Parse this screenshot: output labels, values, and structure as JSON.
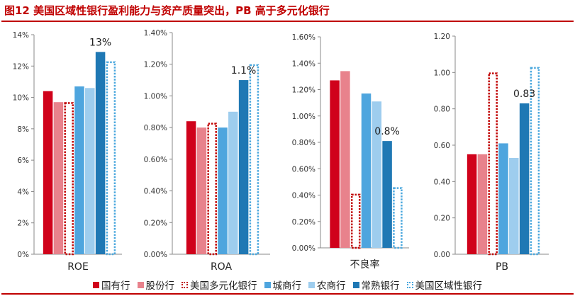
{
  "title": "图12 美国区域性银行盈利能力与资产质量突出，PB 高于多元化银行",
  "colors": {
    "国有行": "#D0021B",
    "股份行": "#E8828C",
    "美国多元化银行": "#C00000",
    "城商行": "#4EA5DE",
    "农商行": "#9ECDEE",
    "常熟银行": "#1F78B4",
    "美国区域性银行": "#4BA8DE"
  },
  "legend": [
    {
      "label": "国有行",
      "style": "solid",
      "color_key": "国有行"
    },
    {
      "label": "股份行",
      "style": "solid",
      "color_key": "股份行"
    },
    {
      "label": "美国多元化银行",
      "style": "dotted",
      "color_key": "美国多元化银行"
    },
    {
      "label": "城商行",
      "style": "solid",
      "color_key": "城商行"
    },
    {
      "label": "农商行",
      "style": "solid",
      "color_key": "农商行"
    },
    {
      "label": "常熟银行",
      "style": "solid",
      "color_key": "常熟银行"
    },
    {
      "label": "美国区域性银行",
      "style": "dotted",
      "color_key": "美国区域性银行"
    }
  ],
  "chart_data": [
    {
      "type": "bar",
      "xlabel": "ROE",
      "ylim": [
        0,
        14
      ],
      "yticks": [
        0,
        2,
        4,
        6,
        8,
        10,
        12,
        14
      ],
      "ytick_labels": [
        "0%",
        "2%",
        "4%",
        "6%",
        "8%",
        "10%",
        "12%",
        "14%"
      ],
      "categories": [
        "国有行",
        "股份行",
        "美国多元化银行",
        "城商行",
        "农商行",
        "常熟银行",
        "美国区域性银行"
      ],
      "values": [
        10.4,
        9.7,
        9.7,
        10.7,
        10.6,
        12.9,
        12.3
      ],
      "annotation": {
        "text": "13%",
        "bar_index": 5
      }
    },
    {
      "type": "bar",
      "xlabel": "ROA",
      "ylim": [
        0,
        1.4
      ],
      "yticks": [
        0,
        0.2,
        0.4,
        0.6,
        0.8,
        1.0,
        1.2,
        1.4
      ],
      "ytick_labels": [
        "0.00%",
        "0.20%",
        "0.40%",
        "0.60%",
        "0.80%",
        "1.00%",
        "1.20%",
        "1.40%"
      ],
      "categories": [
        "国有行",
        "股份行",
        "美国多元化银行",
        "城商行",
        "农商行",
        "常熟银行",
        "美国区域性银行"
      ],
      "values": [
        0.84,
        0.8,
        0.83,
        0.8,
        0.9,
        1.1,
        1.2
      ],
      "annotation": {
        "text": "1.1%",
        "bar_index": 5
      }
    },
    {
      "type": "bar",
      "xlabel": "不良率",
      "ylim": [
        0,
        1.6
      ],
      "yticks": [
        0,
        0.2,
        0.4,
        0.6,
        0.8,
        1.0,
        1.2,
        1.4,
        1.6
      ],
      "ytick_labels": [
        "0.00%",
        "0.20%",
        "0.40%",
        "0.60%",
        "0.80%",
        "1.00%",
        "1.20%",
        "1.40%",
        "1.60%"
      ],
      "categories": [
        "国有行",
        "股份行",
        "美国多元化银行",
        "城商行",
        "农商行",
        "常熟银行",
        "美国区域性银行"
      ],
      "values": [
        1.27,
        1.34,
        0.41,
        1.17,
        1.11,
        0.81,
        0.46
      ],
      "annotation": {
        "text": "0.8%",
        "bar_index": 5
      }
    },
    {
      "type": "bar",
      "xlabel": "PB",
      "ylim": [
        0,
        1.2
      ],
      "yticks": [
        0,
        0.2,
        0.4,
        0.6,
        0.8,
        1.0,
        1.2
      ],
      "ytick_labels": [
        "0.00",
        "0.20",
        "0.40",
        "0.60",
        "0.80",
        "1.00",
        "1.20"
      ],
      "categories": [
        "国有行",
        "股份行",
        "美国多元化银行",
        "城商行",
        "农商行",
        "常熟银行",
        "美国区域性银行"
      ],
      "values": [
        0.55,
        0.55,
        1.0,
        0.61,
        0.53,
        0.83,
        1.03
      ],
      "annotation": {
        "text": "0.83",
        "bar_index": 5
      }
    }
  ]
}
